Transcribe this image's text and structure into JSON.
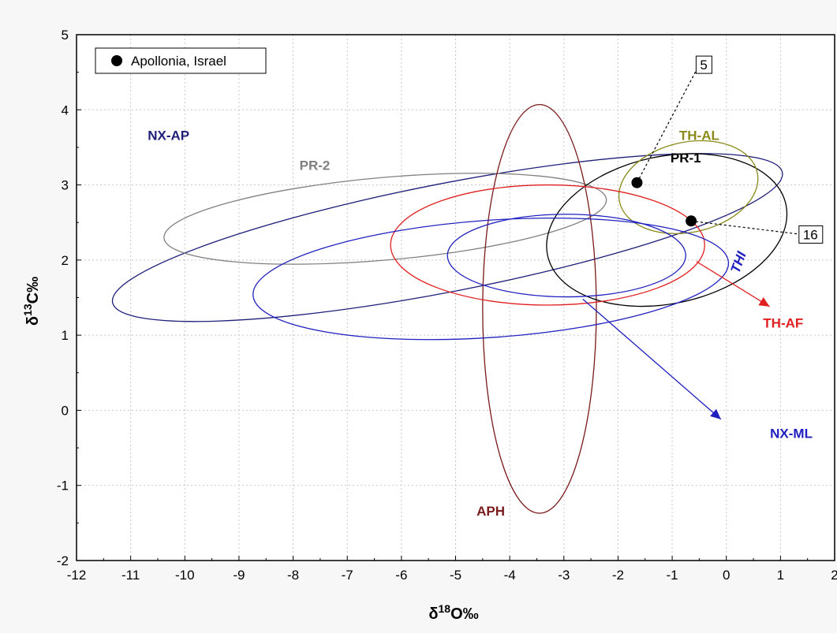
{
  "chart_data": {
    "type": "scatter",
    "xlabel": {
      "base": "δ",
      "sup": "18",
      "rest": "O‰"
    },
    "ylabel": {
      "base": "δ",
      "sup": "13",
      "rest": "C‰"
    },
    "xlim": [
      -12,
      2
    ],
    "ylim": [
      -2,
      5
    ],
    "xticks": [
      "-12",
      "-11",
      "-10",
      "-9",
      "-8",
      "-7",
      "-6",
      "-5",
      "-4",
      "-3",
      "-2",
      "-1",
      "0",
      "1",
      "2"
    ],
    "yticks": [
      "-2",
      "-1",
      "0",
      "1",
      "2",
      "3",
      "4",
      "5"
    ],
    "grid": true,
    "legend_position": "top-left",
    "legend": {
      "label": "Apollonia, Israel"
    },
    "points": [
      {
        "x": -1.65,
        "y": 3.03,
        "label": "5",
        "label_x": -0.5,
        "label_y": 4.6
      },
      {
        "x": -0.65,
        "y": 2.52,
        "label": "16",
        "label_x": 1.4,
        "label_y": 2.34
      }
    ],
    "ellipses": [
      {
        "name": "NX-AP",
        "color": "#1f1f7a",
        "cx": -5.15,
        "cy": 2.3,
        "rx": 6.3,
        "ry": 0.72,
        "angle": 11
      },
      {
        "name": "PR-2",
        "color": "#808080",
        "cx": -6.3,
        "cy": 2.55,
        "rx": 4.1,
        "ry": 0.55,
        "angle": 5
      },
      {
        "name": "APH",
        "color": "#7a1a1a",
        "cx": -3.45,
        "cy": 1.35,
        "rx": 1.05,
        "ry": 2.72,
        "angle": 0
      },
      {
        "name": "PR-1",
        "color": "#000000",
        "cx": -1.1,
        "cy": 2.4,
        "rx": 2.25,
        "ry": 0.98,
        "angle": 12
      },
      {
        "name": "TH-AL",
        "color": "#8a8a1a",
        "cx": -0.7,
        "cy": 2.97,
        "rx": 1.3,
        "ry": 0.6,
        "angle": 12
      },
      {
        "name": "TH-AF",
        "color": "#e02020",
        "cx": -3.3,
        "cy": 2.2,
        "rx": 2.9,
        "ry": 0.8,
        "angle": 0
      },
      {
        "name": "NX-ML",
        "color": "#2020c0",
        "cx": -2.95,
        "cy": 2.06,
        "rx": 2.2,
        "ry": 0.55,
        "angle": 0
      },
      {
        "name": "THI",
        "color": "#2020c0",
        "cx": -4.35,
        "cy": 1.75,
        "rx": 4.4,
        "ry": 0.78,
        "angle": 4
      }
    ],
    "annotations": [
      {
        "text": "NX-AP",
        "x": -10.3,
        "y": 3.6,
        "color": "#1f1f7a",
        "italic": false
      },
      {
        "text": "PR-2",
        "x": -7.6,
        "y": 3.2,
        "color": "#808080",
        "italic": false
      },
      {
        "text": "PR-1",
        "x": -0.75,
        "y": 3.3,
        "color": "#000000",
        "italic": false
      },
      {
        "text": "TH-AL",
        "x": -0.5,
        "y": 3.6,
        "color": "#8a8a1a",
        "italic": false
      },
      {
        "text": "THI",
        "x": 0.3,
        "y": 1.95,
        "color": "#2020c0",
        "italic": true
      },
      {
        "text": "TH-AF",
        "x": 1.05,
        "y": 1.1,
        "color": "#e02020",
        "italic": false
      },
      {
        "text": "NX-ML",
        "x": 1.2,
        "y": -0.37,
        "color": "#2020c0",
        "italic": false
      },
      {
        "text": "APH",
        "x": -4.35,
        "y": -1.4,
        "color": "#7a1a1a",
        "italic": false
      }
    ],
    "arrows": [
      {
        "color": "#e02020",
        "x1": -0.55,
        "y1": 1.98,
        "x2": 0.8,
        "y2": 1.38
      },
      {
        "color": "#2020c0",
        "x1": -2.65,
        "y1": 1.48,
        "x2": -0.1,
        "y2": -0.12
      }
    ]
  }
}
